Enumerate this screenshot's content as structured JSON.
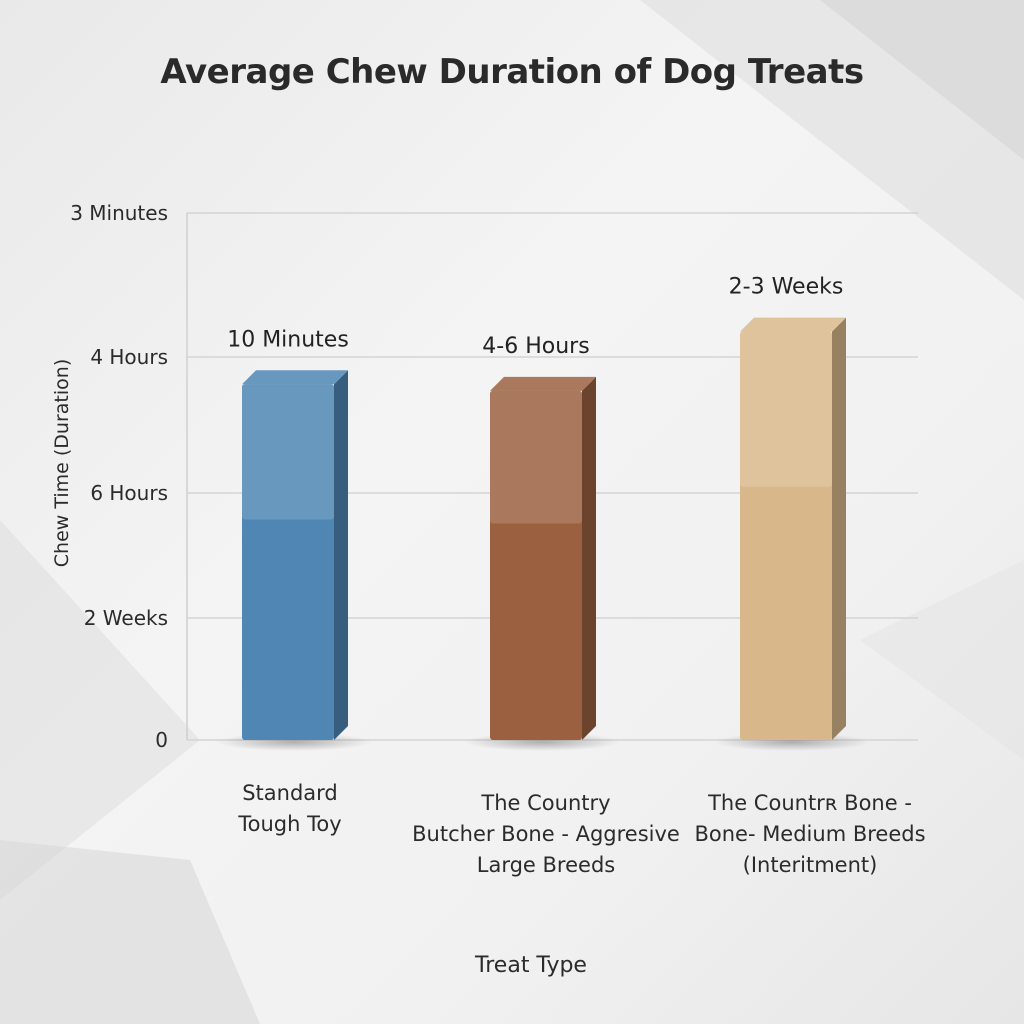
{
  "chart_data": {
    "type": "bar",
    "title": "Average Chew Duration of Dog Treats",
    "xlabel": "Treat Type",
    "ylabel": "Chew Time (Duration)",
    "y_tick_labels": [
      "0",
      "2 Weeks",
      "6 Hours",
      "4 Hours",
      "3 Minutes"
    ],
    "y_tick_positions": [
      0,
      1,
      2,
      3,
      4
    ],
    "ylim": [
      0,
      4
    ],
    "grid": true,
    "categories": [
      [
        "Standard",
        "Tough Toy"
      ],
      [
        "The Country",
        "Butcher Bone - Aggresive",
        "Large Breeds"
      ],
      [
        "The Countrʀ Bone -",
        "Bone- Medium Breeds",
        "(Interitment)"
      ]
    ],
    "values": [
      2.7,
      2.65,
      3.1
    ],
    "data_labels": [
      "10 Minutes",
      "4-6 Hours",
      "2-3 Weeks"
    ],
    "colors": [
      "#4f86b4",
      "#9a6040",
      "#d8b88a"
    ]
  }
}
